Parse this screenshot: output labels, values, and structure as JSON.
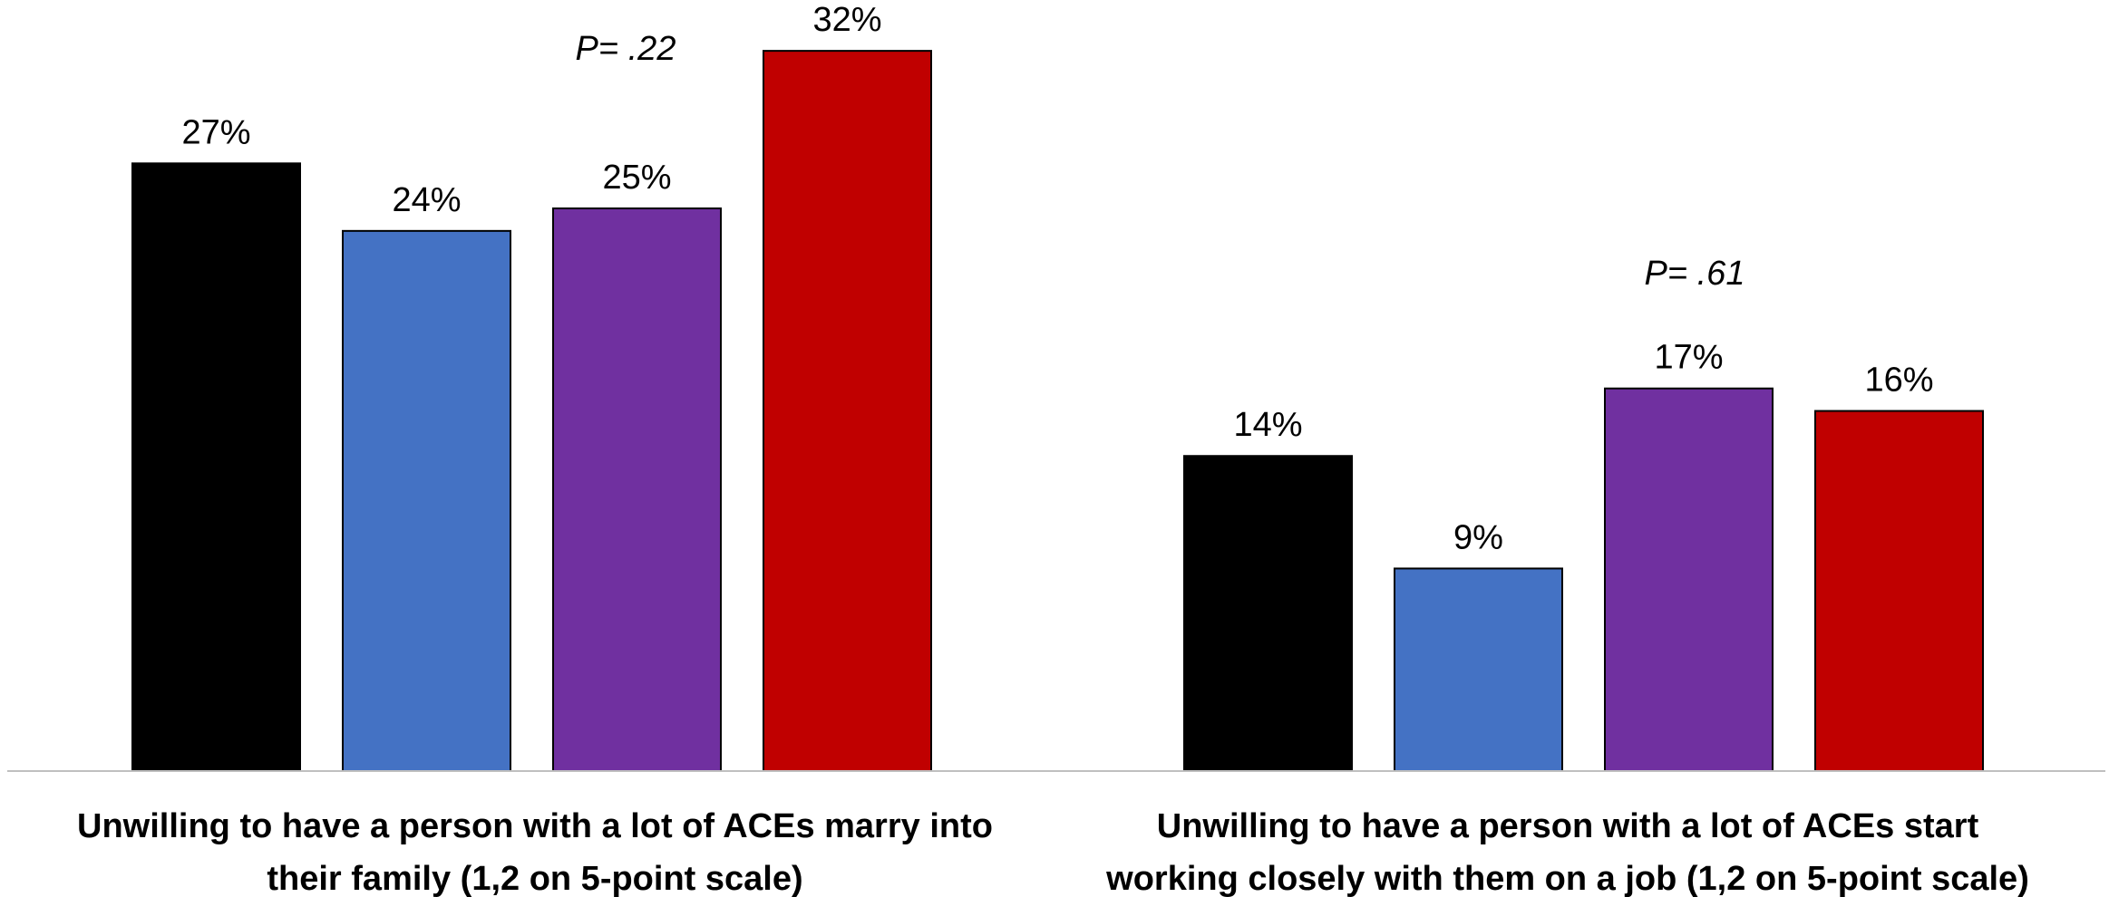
{
  "chart_data": {
    "type": "bar",
    "title": "",
    "xlabel": "",
    "ylabel": "",
    "ylim": [
      0,
      32
    ],
    "grid": false,
    "legend": "none",
    "value_format": "percent",
    "groups": [
      {
        "label_lines": [
          "Unwilling to have a person with a lot of ACEs marry into",
          "their family (1,2 on 5-point scale)"
        ],
        "p_value": "P= .22",
        "bars": [
          {
            "value": 27,
            "label": "27%",
            "color": "#000000"
          },
          {
            "value": 24,
            "label": "24%",
            "color": "#4472C4"
          },
          {
            "value": 25,
            "label": "25%",
            "color": "#7030A0"
          },
          {
            "value": 32,
            "label": "32%",
            "color": "#C00000"
          }
        ]
      },
      {
        "label_lines": [
          "Unwilling to have a person with a lot of ACEs start",
          "working closely with them on a job (1,2 on 5-point scale)"
        ],
        "p_value": "P= .61",
        "bars": [
          {
            "value": 14,
            "label": "14%",
            "color": "#000000"
          },
          {
            "value": 9,
            "label": "9%",
            "color": "#4472C4"
          },
          {
            "value": 17,
            "label": "17%",
            "color": "#7030A0"
          },
          {
            "value": 16,
            "label": "16%",
            "color": "#C00000"
          }
        ]
      }
    ],
    "axis_color": "#BFBFBF"
  }
}
